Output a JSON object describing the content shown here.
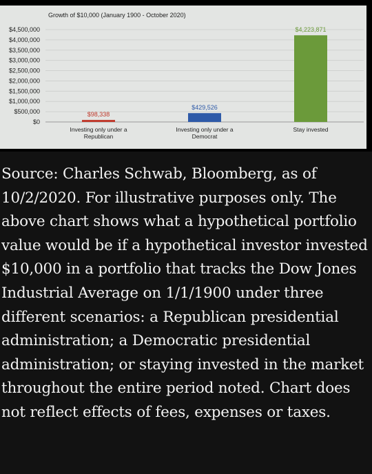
{
  "chart_data": {
    "type": "bar",
    "title": "Growth of $10,000 (January 1900 - October 2020)",
    "categories": [
      [
        "Investing only under a",
        "Republican"
      ],
      [
        "Investing only under a",
        "Democrat"
      ],
      [
        "Stay invested"
      ]
    ],
    "values": [
      98338,
      429526,
      4223871
    ],
    "data_labels": [
      "$98,338",
      "$429,526",
      "$4,223,871"
    ],
    "colors": [
      "#c0392b",
      "#2e5aa8",
      "#6b9a3a"
    ],
    "label_colors": [
      "#c0392b",
      "#2e5aa8",
      "#6b9a3a"
    ],
    "ylim": [
      0,
      4500000
    ],
    "yticks": [
      0,
      500000,
      1000000,
      1500000,
      2000000,
      2500000,
      3000000,
      3500000,
      4000000,
      4500000
    ],
    "ytick_labels": [
      "$0",
      "$500,000",
      "$1,000,000",
      "$1,500,000",
      "$2,000,000",
      "$2,500,000",
      "$3,000,000",
      "$3,500,000",
      "$4,000,000",
      "$4,500,000"
    ],
    "grid": true,
    "xlabel": "",
    "ylabel": ""
  },
  "caption": "Source: Charles Schwab, Bloomberg, as of 10/2/2020. For illustrative purposes only. The above chart shows what a hypothetical portfolio value would be if a hypothetical investor invested $10,000 in a portfolio that tracks the Dow Jones Industrial Average on 1/1/1900 under three different scenarios: a Republican presidential administration; a Democratic presidential administration; or staying invested in the market throughout the entire period noted. Chart does not reflect effects of fees, expenses or taxes."
}
